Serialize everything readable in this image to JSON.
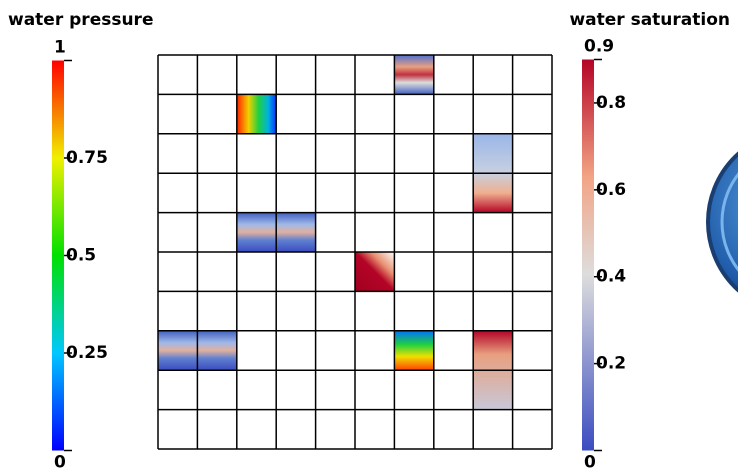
{
  "colorbars": [
    {
      "title": "water pressure",
      "lim": [
        0,
        1
      ],
      "ticks": [
        0,
        0.25,
        0.5,
        0.75,
        1
      ]
    },
    {
      "title": "water saturation",
      "lim": [
        0,
        0.9
      ],
      "ticks": [
        0,
        0.2,
        0.4,
        0.6,
        0.8,
        0.9
      ]
    }
  ]
}
